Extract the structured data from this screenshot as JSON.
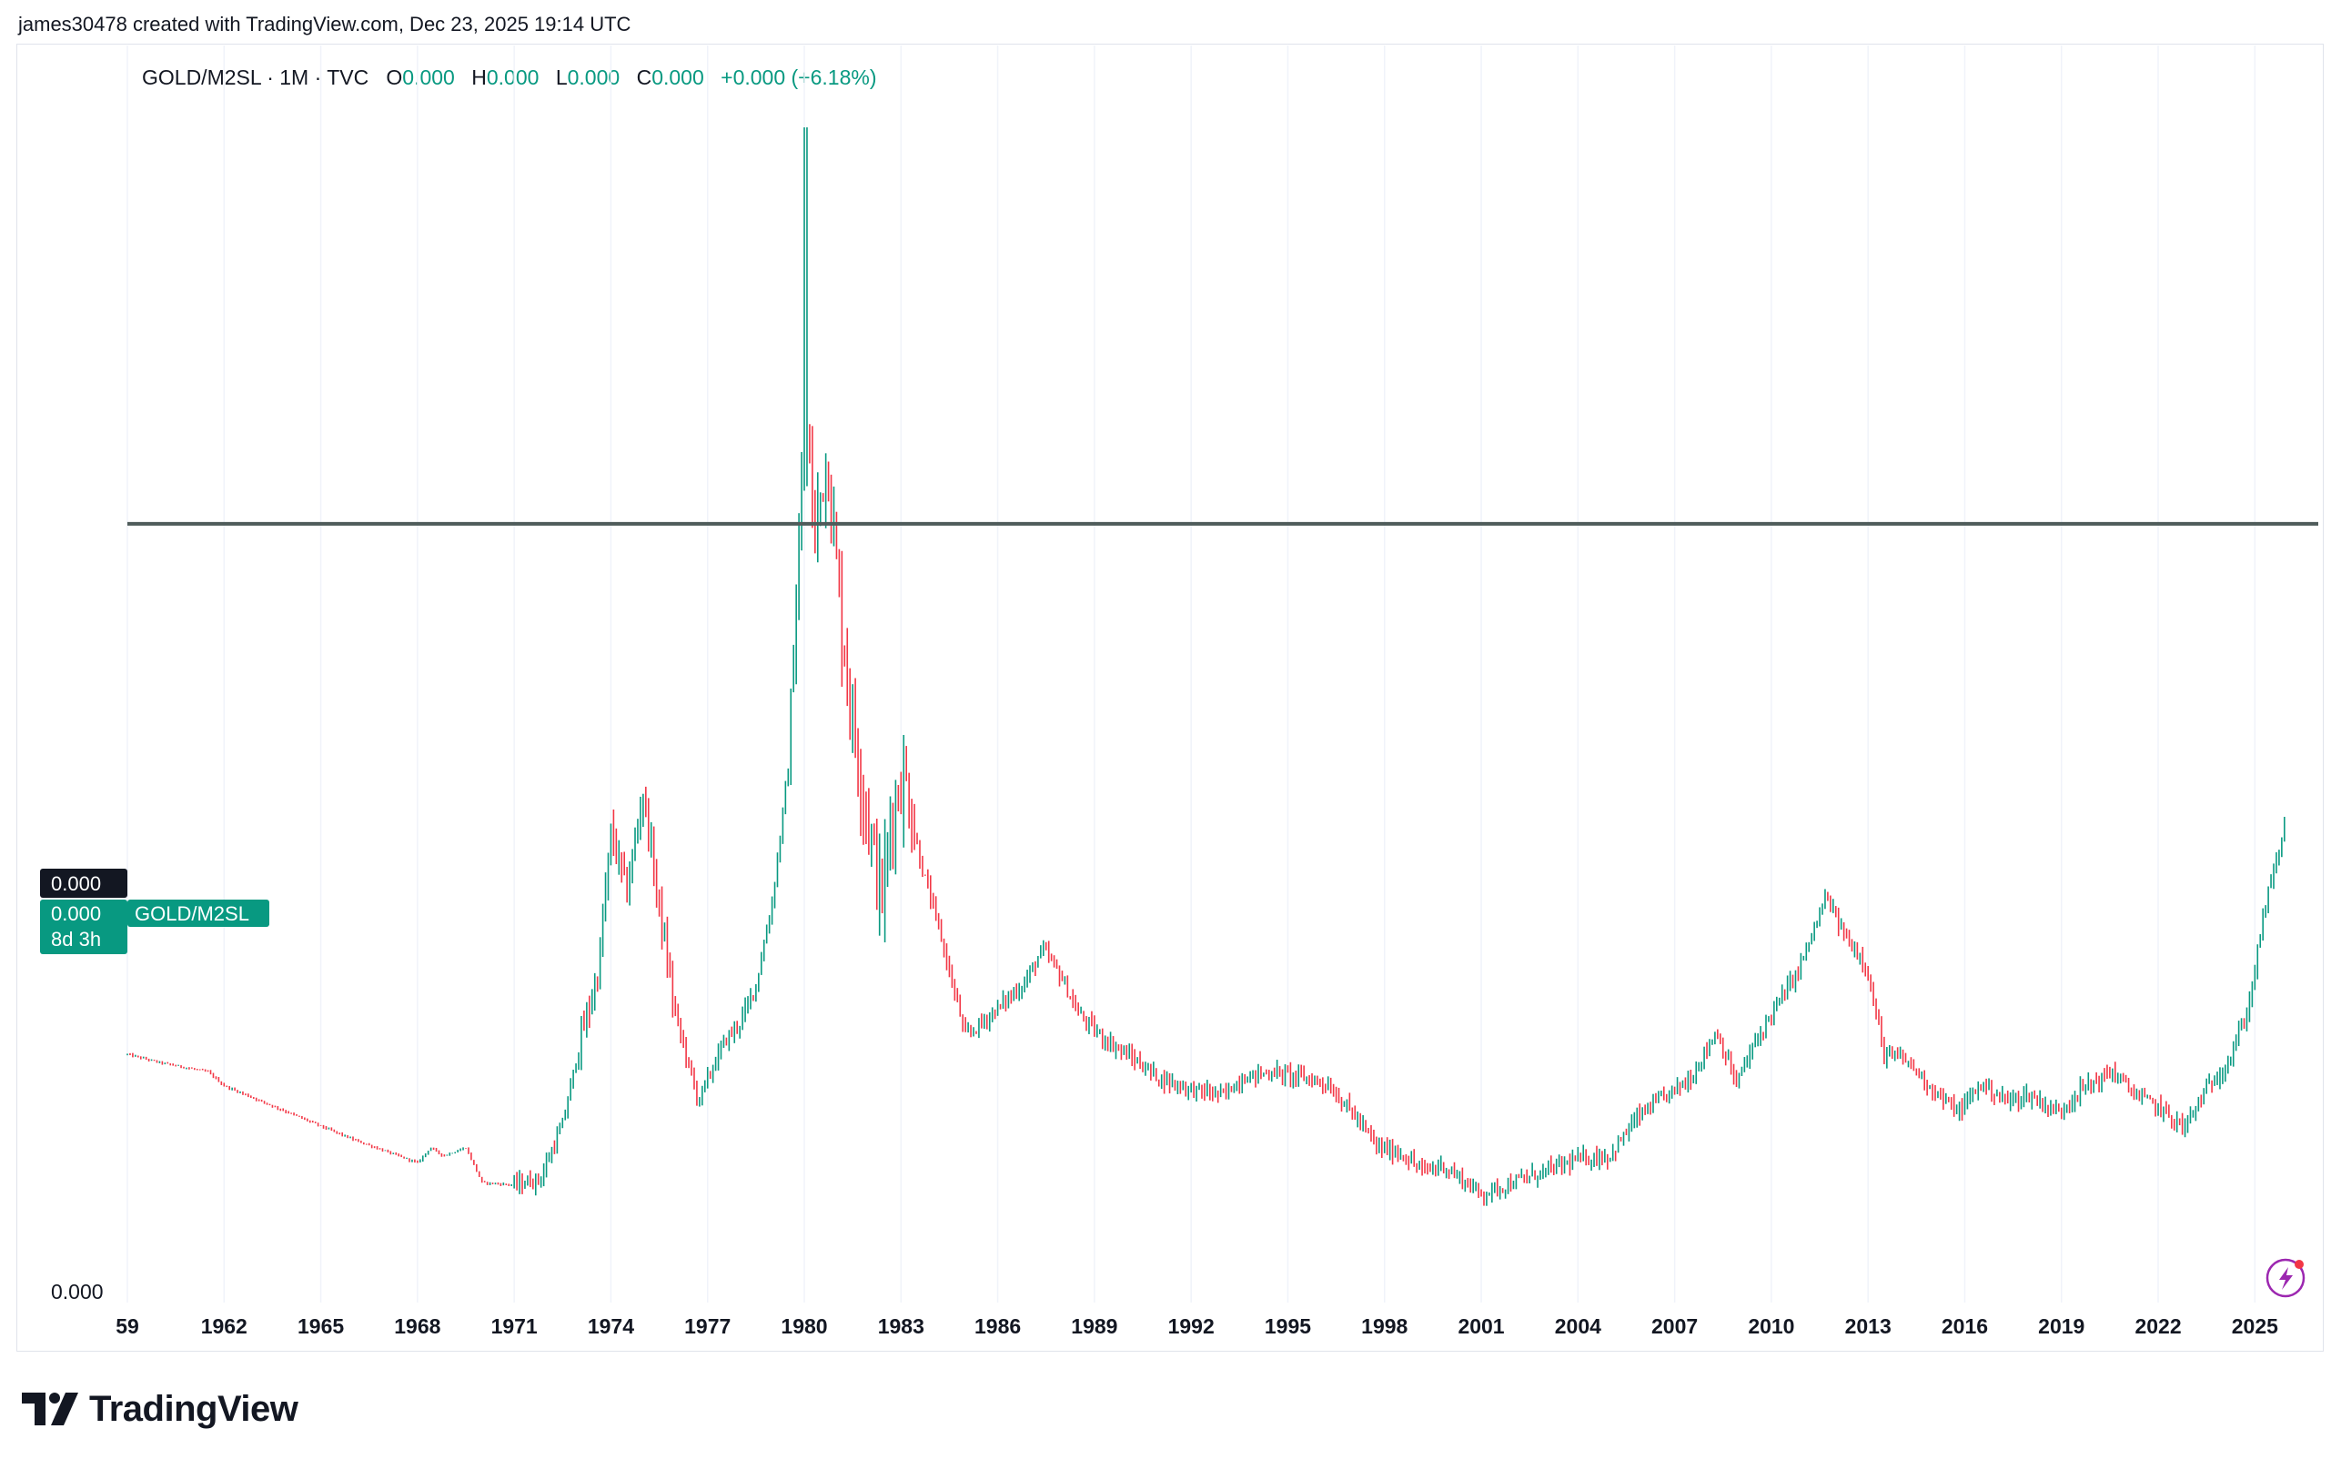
{
  "credit": "james30478 created with TradingView.com, Dec 23, 2025 19:14 UTC",
  "legend": {
    "symbol": "GOLD/M2SL · 1M · TVC",
    "o_label": "O",
    "o_value": "0.000",
    "h_label": "H",
    "h_value": "0.000",
    "l_label": "L",
    "l_value": "0.000",
    "c_label": "C",
    "c_value": "0.000",
    "change": "+0.000 (+6.18%)"
  },
  "price_tags": {
    "crosshair_value": "0.000",
    "last_value": "0.000",
    "countdown": "8d 3h",
    "series_label": "GOLD/M2SL"
  },
  "y_axis_bottom_label": "0.000",
  "x_axis_labels": [
    "59",
    "1962",
    "1965",
    "1968",
    "1971",
    "1974",
    "1977",
    "1980",
    "1983",
    "1986",
    "1989",
    "1992",
    "1995",
    "1998",
    "2001",
    "2004",
    "2007",
    "2010",
    "2013",
    "2016",
    "2019",
    "2022",
    "2025"
  ],
  "brand": "TradingView",
  "icons": {
    "alert": "lightning-icon",
    "logo": "tradingview-logo-icon"
  },
  "colors": {
    "up": "#089981",
    "down": "#f23645",
    "line": "#4e5b5a",
    "tag": "#089981"
  },
  "chart_data": {
    "type": "candlestick",
    "title": "GOLD/M2SL · 1M · TVC",
    "interval": "1M",
    "x_start": 1959.0,
    "x_end": 2025.95,
    "y_scale": "relative (all labels print 0.000)",
    "horizontal_line": 0.66,
    "grid": true,
    "ylim": [
      0,
      1.0
    ],
    "anchors": [
      [
        1959.0,
        0.205
      ],
      [
        1960.0,
        0.198
      ],
      [
        1961.5,
        0.19
      ],
      [
        1962.0,
        0.178
      ],
      [
        1964.0,
        0.155
      ],
      [
        1966.0,
        0.132
      ],
      [
        1968.0,
        0.112
      ],
      [
        1968.4,
        0.125
      ],
      [
        1968.8,
        0.118
      ],
      [
        1969.5,
        0.125
      ],
      [
        1970.0,
        0.095
      ],
      [
        1971.0,
        0.093
      ],
      [
        1971.8,
        0.098
      ],
      [
        1972.5,
        0.145
      ],
      [
        1973.0,
        0.21
      ],
      [
        1973.6,
        0.275
      ],
      [
        1974.0,
        0.395
      ],
      [
        1974.5,
        0.345
      ],
      [
        1975.0,
        0.43
      ],
      [
        1975.5,
        0.33
      ],
      [
        1976.0,
        0.24
      ],
      [
        1976.7,
        0.165
      ],
      [
        1977.5,
        0.215
      ],
      [
        1978.0,
        0.232
      ],
      [
        1978.5,
        0.265
      ],
      [
        1979.0,
        0.335
      ],
      [
        1979.5,
        0.45
      ],
      [
        1979.8,
        0.62
      ],
      [
        1980.05,
        0.75
      ],
      [
        1980.3,
        0.65
      ],
      [
        1980.7,
        0.72
      ],
      [
        1981.2,
        0.56
      ],
      [
        1981.6,
        0.47
      ],
      [
        1981.9,
        0.42
      ],
      [
        1982.4,
        0.335
      ],
      [
        1982.7,
        0.41
      ],
      [
        1983.1,
        0.445
      ],
      [
        1983.6,
        0.37
      ],
      [
        1984.2,
        0.31
      ],
      [
        1985.0,
        0.22
      ],
      [
        1985.5,
        0.232
      ],
      [
        1986.2,
        0.25
      ],
      [
        1986.8,
        0.265
      ],
      [
        1987.4,
        0.295
      ],
      [
        1987.9,
        0.275
      ],
      [
        1988.5,
        0.24
      ],
      [
        1989.2,
        0.22
      ],
      [
        1990.0,
        0.205
      ],
      [
        1991.0,
        0.185
      ],
      [
        1992.0,
        0.175
      ],
      [
        1993.0,
        0.17
      ],
      [
        1993.6,
        0.185
      ],
      [
        1994.5,
        0.19
      ],
      [
        1995.5,
        0.185
      ],
      [
        1996.2,
        0.18
      ],
      [
        1997.0,
        0.155
      ],
      [
        1997.8,
        0.125
      ],
      [
        1998.5,
        0.12
      ],
      [
        1999.2,
        0.105
      ],
      [
        1999.8,
        0.11
      ],
      [
        2001.0,
        0.085
      ],
      [
        2002.0,
        0.095
      ],
      [
        2003.0,
        0.105
      ],
      [
        2004.0,
        0.115
      ],
      [
        2005.0,
        0.118
      ],
      [
        2005.8,
        0.15
      ],
      [
        2006.5,
        0.165
      ],
      [
        2007.5,
        0.185
      ],
      [
        2008.3,
        0.225
      ],
      [
        2008.9,
        0.18
      ],
      [
        2009.5,
        0.215
      ],
      [
        2010.0,
        0.24
      ],
      [
        2010.8,
        0.275
      ],
      [
        2011.3,
        0.31
      ],
      [
        2011.7,
        0.34
      ],
      [
        2012.3,
        0.305
      ],
      [
        2012.9,
        0.285
      ],
      [
        2013.5,
        0.205
      ],
      [
        2014.2,
        0.2
      ],
      [
        2015.0,
        0.175
      ],
      [
        2015.8,
        0.155
      ],
      [
        2016.5,
        0.18
      ],
      [
        2017.3,
        0.165
      ],
      [
        2018.0,
        0.17
      ],
      [
        2018.9,
        0.155
      ],
      [
        2019.6,
        0.175
      ],
      [
        2020.6,
        0.19
      ],
      [
        2021.3,
        0.17
      ],
      [
        2022.0,
        0.16
      ],
      [
        2022.8,
        0.142
      ],
      [
        2023.5,
        0.175
      ],
      [
        2024.2,
        0.2
      ],
      [
        2024.8,
        0.245
      ],
      [
        2025.3,
        0.33
      ],
      [
        2025.9,
        0.398
      ]
    ]
  }
}
